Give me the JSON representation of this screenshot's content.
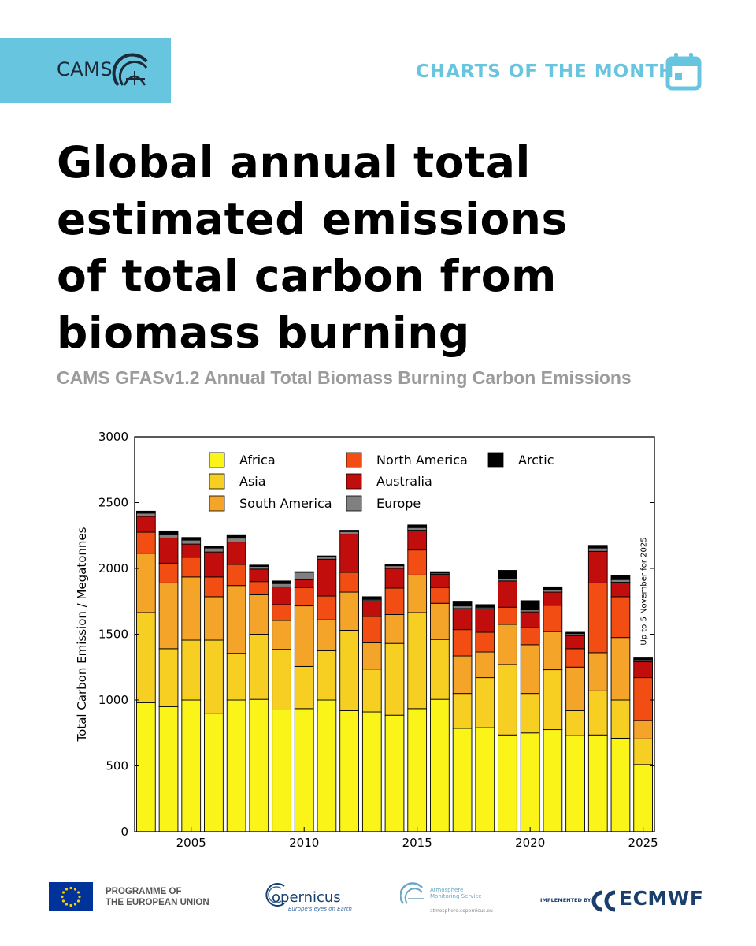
{
  "header": {
    "brand": "CAMS",
    "section_label": "CHARTS OF THE MONTH",
    "brand_color": "#67c5e0"
  },
  "headline": {
    "line1": "Global annual total",
    "line2": "estimated emissions",
    "line3": "of total carbon from",
    "line4": "biomass burning"
  },
  "subtitle": "CAMS GFASv1.2 Annual Total Biomass Burning Carbon Emissions",
  "chart_data": {
    "type": "bar",
    "stacked": true,
    "title": "CAMS GFASv1.2 Annual Total Biomass Burning Carbon Emissions",
    "xlabel": "",
    "ylabel": "Total Carbon Emission / Megatonnes",
    "ylim": [
      0,
      3000
    ],
    "yticks": [
      0,
      500,
      1000,
      1500,
      2000,
      2500,
      3000
    ],
    "xticks": [
      2005,
      2010,
      2015,
      2020,
      2025
    ],
    "annotation": "Up to 5 November for 2025",
    "legend_position": "top",
    "categories": [
      2003,
      2004,
      2005,
      2006,
      2007,
      2008,
      2009,
      2010,
      2011,
      2012,
      2013,
      2014,
      2015,
      2016,
      2017,
      2018,
      2019,
      2020,
      2021,
      2022,
      2023,
      2024,
      2025
    ],
    "series": [
      {
        "name": "Africa",
        "color": "#fbf419",
        "values": [
          980,
          950,
          1000,
          900,
          1000,
          1005,
          925,
          935,
          1000,
          920,
          910,
          885,
          935,
          1005,
          785,
          790,
          735,
          750,
          775,
          730,
          735,
          710,
          510
        ]
      },
      {
        "name": "Asia",
        "color": "#f7cf23",
        "values": [
          685,
          440,
          455,
          555,
          355,
          495,
          460,
          320,
          375,
          610,
          325,
          545,
          730,
          455,
          265,
          380,
          535,
          300,
          455,
          190,
          335,
          290,
          195
        ]
      },
      {
        "name": "South America",
        "color": "#f5a42a",
        "values": [
          450,
          500,
          480,
          330,
          515,
          300,
          220,
          460,
          235,
          290,
          200,
          220,
          285,
          275,
          285,
          195,
          305,
          370,
          290,
          330,
          290,
          475,
          140
        ]
      },
      {
        "name": "North America",
        "color": "#f24d13",
        "values": [
          160,
          150,
          150,
          150,
          160,
          100,
          120,
          140,
          180,
          150,
          200,
          200,
          190,
          120,
          200,
          150,
          130,
          130,
          200,
          140,
          530,
          310,
          325
        ]
      },
      {
        "name": "Australia",
        "color": "#c20d0d",
        "values": [
          120,
          190,
          100,
          190,
          170,
          95,
          135,
          60,
          280,
          290,
          120,
          150,
          150,
          100,
          160,
          180,
          200,
          120,
          100,
          100,
          240,
          110,
          120
        ]
      },
      {
        "name": "Europe",
        "color": "#808080",
        "values": [
          25,
          25,
          30,
          30,
          30,
          20,
          25,
          55,
          20,
          20,
          10,
          20,
          20,
          10,
          20,
          10,
          20,
          15,
          20,
          15,
          25,
          20,
          15
        ]
      },
      {
        "name": "Arctic",
        "color": "#000000",
        "values": [
          15,
          30,
          20,
          10,
          20,
          10,
          20,
          5,
          5,
          10,
          20,
          10,
          20,
          10,
          30,
          20,
          60,
          70,
          20,
          10,
          20,
          30,
          15
        ]
      }
    ]
  },
  "footer": {
    "eu_line1": "PROGRAMME OF",
    "eu_line2": "THE EUROPEAN UNION",
    "copernicus": "opernicus",
    "copernicus_tagline": "Europe's eyes on Earth",
    "ams_line1": "Atmosphere",
    "ams_line2": "Monitoring Service",
    "ams_url": "atmosphere.copernicus.eu",
    "implemented_by": "IMPLEMENTED BY",
    "ecmwf": "ECMWF"
  }
}
